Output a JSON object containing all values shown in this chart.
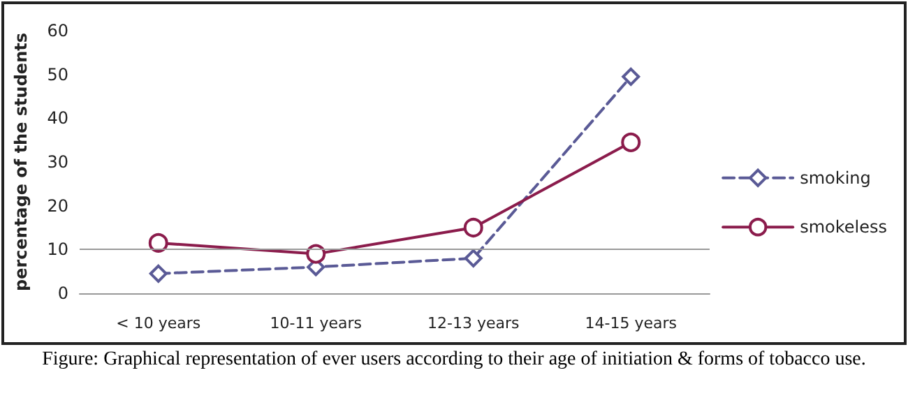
{
  "chart_data": {
    "type": "line",
    "categories": [
      "< 10 years",
      "10-11 years",
      "12-13 years",
      "14-15 years"
    ],
    "series": [
      {
        "name": "smoking",
        "color": "#5a5a96",
        "values": [
          4.5,
          6,
          8,
          49.5
        ],
        "marker": "diamond",
        "line_style": "dashed"
      },
      {
        "name": "smokeless",
        "color": "#8b1c4c",
        "values": [
          11.5,
          9,
          15,
          34.5
        ],
        "marker": "circle",
        "line_style": "solid"
      }
    ],
    "ylabel": "percentage of the students",
    "ylim": [
      0,
      60
    ],
    "yticks": [
      0,
      10,
      20,
      30,
      40,
      50,
      60
    ],
    "ref_lines": [
      {
        "axis": "y",
        "value": 10,
        "label": null,
        "color": "#999999"
      }
    ],
    "grid": false,
    "legend": "right",
    "annotations": [
      "Figure: Graphical representation of ever users according to their age of initiation & forms of tobacco use."
    ]
  }
}
